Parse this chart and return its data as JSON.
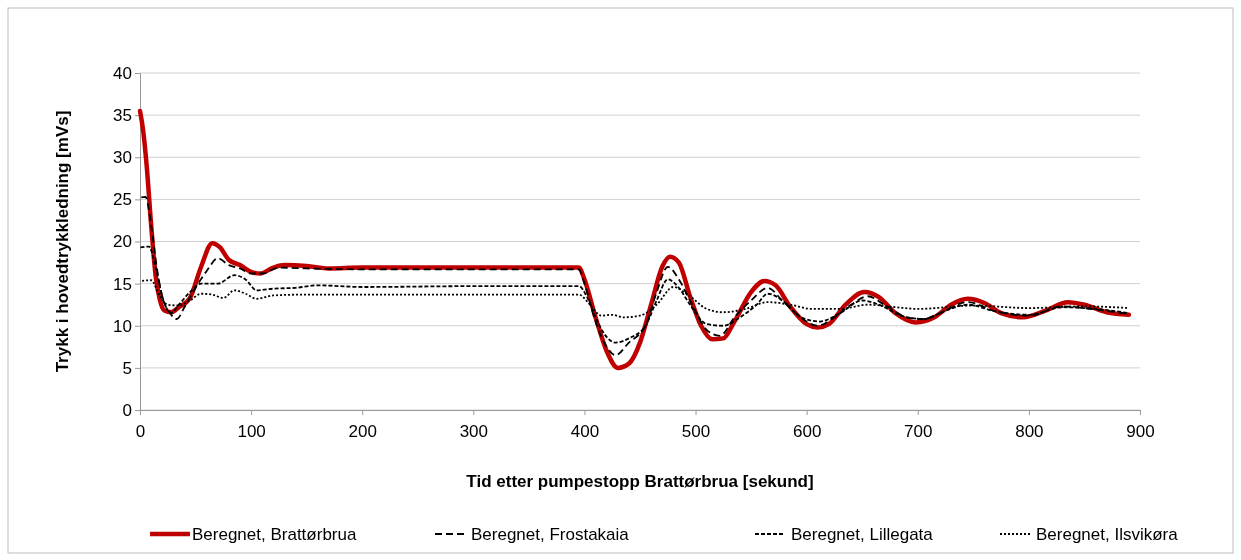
{
  "chart_data": {
    "type": "line",
    "xlabel": "Tid etter pumpestopp Brattørbrua [sekund]",
    "ylabel": "Trykk i hovedtrykkledning [mVs]",
    "xlim": [
      0,
      900
    ],
    "xticks": [
      0,
      100,
      200,
      300,
      400,
      500,
      600,
      700,
      800,
      900
    ],
    "ylim": [
      0,
      40
    ],
    "yticks": [
      0,
      5,
      10,
      15,
      20,
      25,
      30,
      35,
      40
    ],
    "grid": "y",
    "legend": "bottom",
    "marker": "none",
    "series": [
      {
        "name": "Beregnet, Brattørbrua",
        "color": "#c00000",
        "line_style": "solid",
        "x": [
          0,
          3,
          6,
          10,
          14,
          18,
          22,
          28,
          35,
          45,
          55,
          65,
          72,
          80,
          90,
          100,
          108,
          120,
          130,
          150,
          170,
          200,
          300,
          395,
          400,
          410,
          420,
          430,
          440,
          450,
          460,
          470,
          477,
          485,
          495,
          505,
          515,
          525,
          535,
          550,
          562,
          572,
          585,
          600,
          610,
          620,
          635,
          652,
          665,
          680,
          698,
          715,
          730,
          745,
          760,
          775,
          795,
          815,
          835,
          850,
          870,
          890
        ],
        "values": [
          35.5,
          33,
          29,
          22,
          16,
          13,
          11.8,
          11.6,
          12.2,
          13.3,
          17,
          19.8,
          19.3,
          17.8,
          17.2,
          16.4,
          16.2,
          16.9,
          17.2,
          17.1,
          16.8,
          16.9,
          16.9,
          16.9,
          15.5,
          11,
          7,
          5,
          5.5,
          8,
          12.5,
          17,
          18.2,
          17.5,
          13.5,
          10,
          8.4,
          8.5,
          10.5,
          14,
          15.3,
          14.8,
          12.3,
          10.2,
          9.8,
          10.2,
          12.5,
          14,
          13.4,
          11.5,
          10.4,
          11,
          12.5,
          13.2,
          12.7,
          11.5,
          11,
          11.8,
          12.8,
          12.5,
          11.6,
          11.3
        ]
      },
      {
        "name": "Beregnet, Frostakaia",
        "color": "#000000",
        "line_style": "dashed",
        "x": [
          0,
          5,
          10,
          15,
          20,
          27,
          33,
          40,
          50,
          60,
          70,
          80,
          90,
          100,
          110,
          125,
          150,
          200,
          300,
          395,
          400,
          410,
          420,
          428,
          440,
          455,
          465,
          475,
          485,
          495,
          510,
          522,
          535,
          550,
          565,
          578,
          590,
          610,
          625,
          640,
          655,
          670,
          690,
          705,
          720,
          745,
          770,
          800,
          830,
          855,
          890
        ],
        "values": [
          25.2,
          25.3,
          22,
          17,
          13.5,
          11.5,
          10.8,
          12.2,
          14.5,
          16.5,
          18,
          17.2,
          16.8,
          16.2,
          16.2,
          16.9,
          16.8,
          16.7,
          16.7,
          16.7,
          15,
          10.5,
          7.5,
          6.5,
          8,
          10,
          14,
          17,
          15.5,
          13,
          9.5,
          8.8,
          11,
          13,
          14.5,
          13,
          11.5,
          10,
          11,
          12.5,
          13.5,
          12.5,
          11,
          10.8,
          11.5,
          12.8,
          11.7,
          11.2,
          12.3,
          12,
          11.4
        ]
      },
      {
        "name": "Beregnet, Lillegata",
        "color": "#000000",
        "line_style": "dashed",
        "x": [
          0,
          8,
          14,
          20,
          28,
          35,
          45,
          55,
          70,
          85,
          95,
          105,
          120,
          140,
          160,
          200,
          300,
          395,
          402,
          410,
          418,
          428,
          440,
          455,
          465,
          475,
          485,
          495,
          510,
          525,
          540,
          555,
          565,
          580,
          595,
          612,
          630,
          650,
          665,
          685,
          705,
          725,
          745,
          770,
          800,
          830,
          860,
          890
        ],
        "values": [
          19.3,
          19.4,
          17,
          13.5,
          11.5,
          12.5,
          14,
          15,
          15,
          16,
          15.5,
          14.2,
          14.4,
          14.5,
          14.8,
          14.6,
          14.7,
          14.7,
          13.5,
          11,
          9,
          8,
          8.5,
          10,
          13,
          15.5,
          14.5,
          12.5,
          10.2,
          10,
          11,
          12.5,
          13.8,
          12.8,
          11,
          10.5,
          11.5,
          13,
          12.5,
          11.2,
          10.8,
          11.8,
          12.5,
          11.7,
          11.3,
          12.2,
          12,
          11.5
        ]
      },
      {
        "name": "Beregnet, Ilsvikøra",
        "color": "#000000",
        "line_style": "dotted",
        "x": [
          0,
          10,
          18,
          25,
          35,
          45,
          55,
          65,
          75,
          85,
          95,
          105,
          120,
          150,
          200,
          395,
          405,
          415,
          425,
          435,
          450,
          465,
          480,
          495,
          510,
          525,
          545,
          565,
          585,
          605,
          630,
          655,
          680,
          700,
          750,
          800,
          850,
          890
        ],
        "values": [
          15.3,
          15.4,
          13.5,
          12.5,
          12.4,
          13,
          13.8,
          13.7,
          13.3,
          14.2,
          13.8,
          13.2,
          13.6,
          13.7,
          13.7,
          13.7,
          12.5,
          11.2,
          11.3,
          11,
          11.2,
          12.5,
          14.6,
          13.5,
          12,
          11.6,
          12,
          12.8,
          12.5,
          12,
          12,
          12.5,
          12.2,
          12,
          12.4,
          12.1,
          12.3,
          12.1
        ]
      }
    ]
  }
}
